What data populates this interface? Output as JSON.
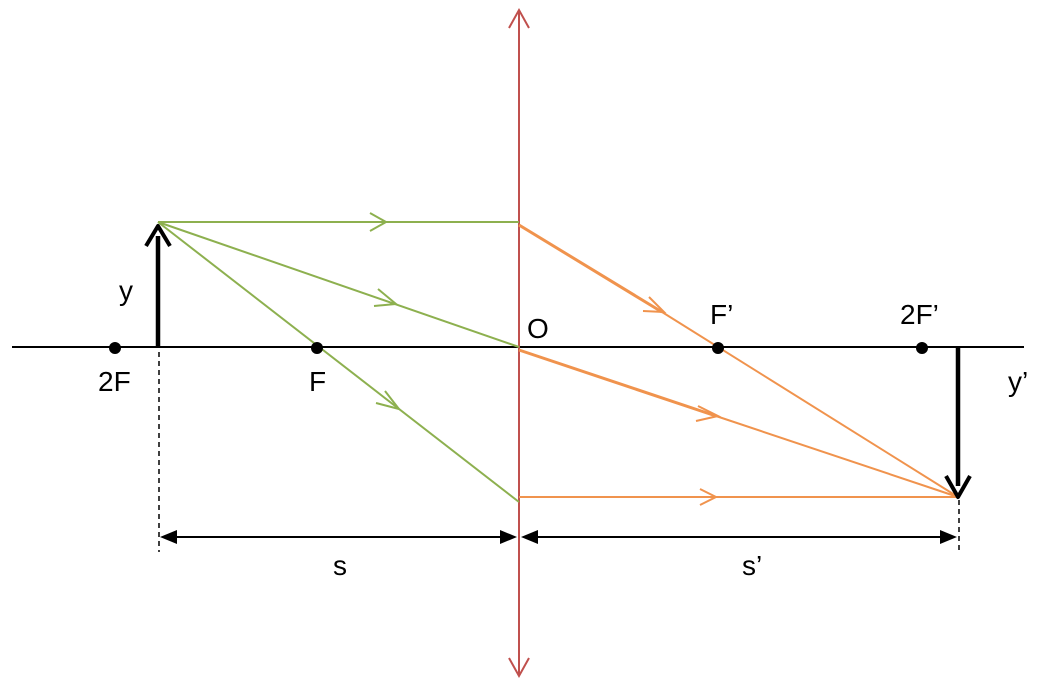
{
  "diagram": {
    "labels": {
      "object_height": "y",
      "image_height": "y’",
      "twice_focal_object_side": "2F",
      "focal_object_side": "F",
      "optical_center": "O",
      "focal_image_side": "F’",
      "twice_focal_image_side": "2F’",
      "object_distance": "s",
      "image_distance": "s’"
    },
    "colors": {
      "lens": "#c0504d",
      "incident_rays": "#8db04f",
      "refracted_rays": "#f0934d",
      "axis": "#000000",
      "object_arrow": "#000000",
      "image_arrow": "#000000"
    }
  }
}
